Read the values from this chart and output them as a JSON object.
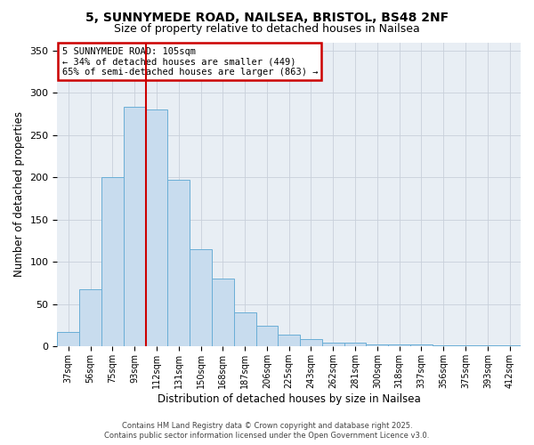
{
  "title": "5, SUNNYMEDE ROAD, NAILSEA, BRISTOL, BS48 2NF",
  "subtitle": "Size of property relative to detached houses in Nailsea",
  "xlabel": "Distribution of detached houses by size in Nailsea",
  "ylabel": "Number of detached properties",
  "bar_values": [
    17,
    68,
    200,
    284,
    280,
    197,
    115,
    80,
    40,
    25,
    14,
    9,
    5,
    5,
    2,
    2,
    2,
    1,
    1,
    1,
    1
  ],
  "bar_labels": [
    "37sqm",
    "56sqm",
    "75sqm",
    "93sqm",
    "112sqm",
    "131sqm",
    "150sqm",
    "168sqm",
    "187sqm",
    "206sqm",
    "225sqm",
    "243sqm",
    "262sqm",
    "281sqm",
    "300sqm",
    "318sqm",
    "337sqm",
    "356sqm",
    "375sqm",
    "393sqm",
    "412sqm"
  ],
  "bar_color": "#c8dcee",
  "bar_edge_color": "#6aaed6",
  "vline_color": "#cc0000",
  "vline_pos": 3.5,
  "ylim": [
    0,
    360
  ],
  "yticks": [
    0,
    50,
    100,
    150,
    200,
    250,
    300,
    350
  ],
  "annotation_title": "5 SUNNYMEDE ROAD: 105sqm",
  "annotation_line1": "← 34% of detached houses are smaller (449)",
  "annotation_line2": "65% of semi-detached houses are larger (863) →",
  "annotation_box_color": "#ffffff",
  "annotation_box_edge": "#cc0000",
  "footer1": "Contains HM Land Registry data © Crown copyright and database right 2025.",
  "footer2": "Contains public sector information licensed under the Open Government Licence v3.0.",
  "bg_color": "#ffffff",
  "plot_bg_color": "#e8eef4",
  "grid_color": "#c8d0da"
}
